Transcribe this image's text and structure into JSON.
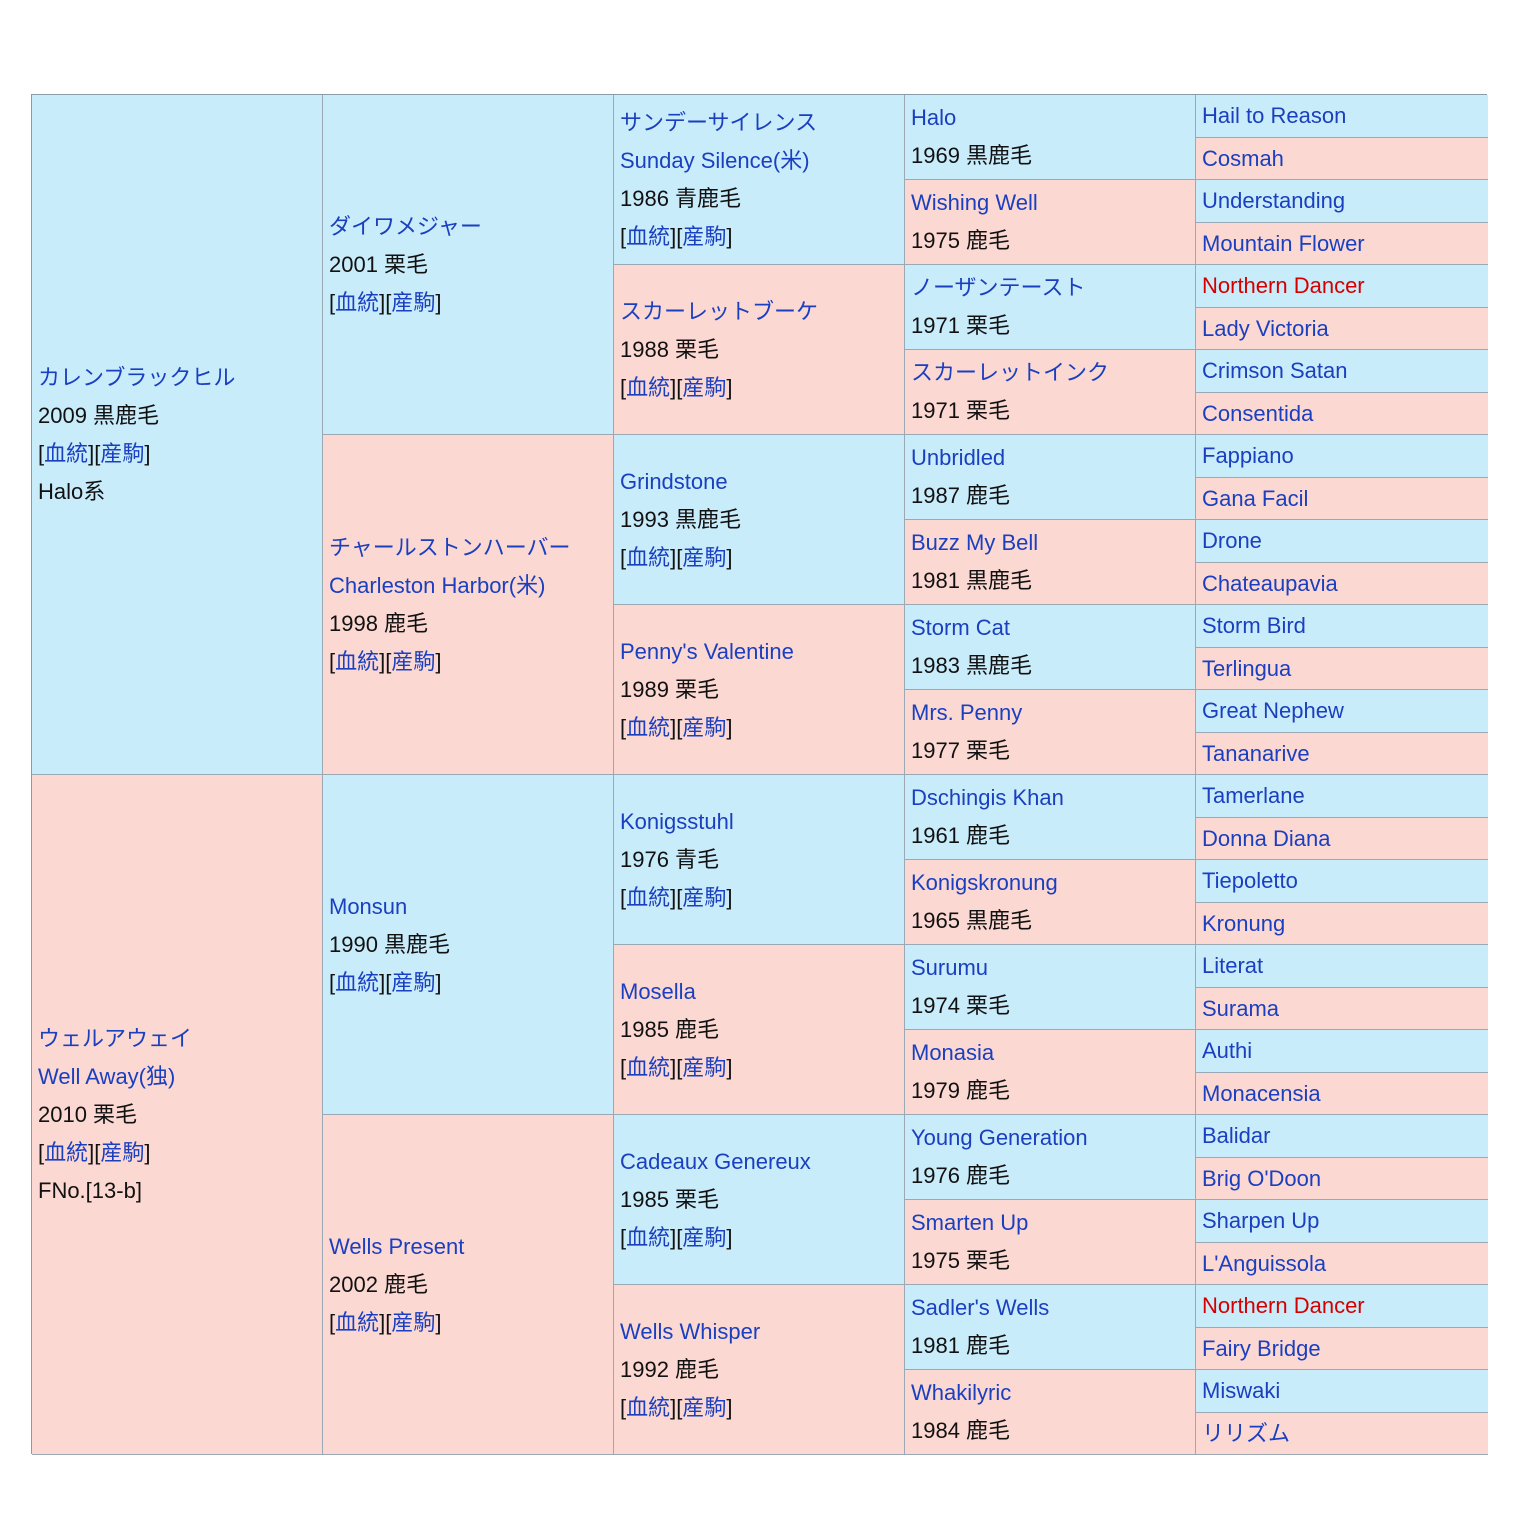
{
  "links": {
    "bloodline": "血統",
    "progeny": "産駒"
  },
  "cells": [
    {
      "gen": 1,
      "sex": "m",
      "names": [
        "カレンブラックヒル"
      ],
      "info": "2009 黒鹿毛",
      "links": true,
      "extra": "Halo系"
    },
    {
      "gen": 1,
      "sex": "f",
      "names": [
        "ウェルアウェイ",
        "Well Away(独)"
      ],
      "info": "2010 栗毛",
      "links": true,
      "extra": "FNo.[13-b]"
    },
    {
      "gen": 2,
      "sex": "m",
      "names": [
        "ダイワメジャー"
      ],
      "info": "2001 栗毛",
      "links": true
    },
    {
      "gen": 2,
      "sex": "f",
      "names": [
        "チャールストンハーバー",
        "Charleston Harbor(米)"
      ],
      "info": "1998 鹿毛",
      "links": true
    },
    {
      "gen": 2,
      "sex": "m",
      "names": [
        "Monsun"
      ],
      "info": "1990 黒鹿毛",
      "links": true
    },
    {
      "gen": 2,
      "sex": "f",
      "names": [
        "Wells Present"
      ],
      "info": "2002 鹿毛",
      "links": true
    },
    {
      "gen": 3,
      "sex": "m",
      "names": [
        "サンデーサイレンス",
        "Sunday Silence(米)"
      ],
      "info": "1986 青鹿毛",
      "links": true
    },
    {
      "gen": 3,
      "sex": "f",
      "names": [
        "スカーレットブーケ"
      ],
      "info": "1988 栗毛",
      "links": true
    },
    {
      "gen": 3,
      "sex": "m",
      "names": [
        "Grindstone"
      ],
      "info": "1993 黒鹿毛",
      "links": true
    },
    {
      "gen": 3,
      "sex": "f",
      "names": [
        "Penny's Valentine"
      ],
      "info": "1989 栗毛",
      "links": true
    },
    {
      "gen": 3,
      "sex": "m",
      "names": [
        "Konigsstuhl"
      ],
      "info": "1976 青毛",
      "links": true
    },
    {
      "gen": 3,
      "sex": "f",
      "names": [
        "Mosella"
      ],
      "info": "1985 鹿毛",
      "links": true
    },
    {
      "gen": 3,
      "sex": "m",
      "names": [
        "Cadeaux Genereux"
      ],
      "info": "1985 栗毛",
      "links": true
    },
    {
      "gen": 3,
      "sex": "f",
      "names": [
        "Wells Whisper"
      ],
      "info": "1992 鹿毛",
      "links": true
    },
    {
      "gen": 4,
      "sex": "m",
      "names": [
        "Halo"
      ],
      "info": "1969 黒鹿毛"
    },
    {
      "gen": 4,
      "sex": "f",
      "names": [
        "Wishing Well"
      ],
      "info": "1975 鹿毛"
    },
    {
      "gen": 4,
      "sex": "m",
      "names": [
        "ノーザンテースト"
      ],
      "info": "1971 栗毛"
    },
    {
      "gen": 4,
      "sex": "f",
      "names": [
        "スカーレットインク"
      ],
      "info": "1971 栗毛"
    },
    {
      "gen": 4,
      "sex": "m",
      "names": [
        "Unbridled"
      ],
      "info": "1987 鹿毛"
    },
    {
      "gen": 4,
      "sex": "f",
      "names": [
        "Buzz My Bell"
      ],
      "info": "1981 黒鹿毛"
    },
    {
      "gen": 4,
      "sex": "m",
      "names": [
        "Storm Cat"
      ],
      "info": "1983 黒鹿毛"
    },
    {
      "gen": 4,
      "sex": "f",
      "names": [
        "Mrs. Penny"
      ],
      "info": "1977 栗毛"
    },
    {
      "gen": 4,
      "sex": "m",
      "names": [
        "Dschingis Khan"
      ],
      "info": "1961 鹿毛"
    },
    {
      "gen": 4,
      "sex": "f",
      "names": [
        "Konigskronung"
      ],
      "info": "1965 黒鹿毛"
    },
    {
      "gen": 4,
      "sex": "m",
      "names": [
        "Surumu"
      ],
      "info": "1974 栗毛"
    },
    {
      "gen": 4,
      "sex": "f",
      "names": [
        "Monasia"
      ],
      "info": "1979 鹿毛"
    },
    {
      "gen": 4,
      "sex": "m",
      "names": [
        "Young Generation"
      ],
      "info": "1976 鹿毛"
    },
    {
      "gen": 4,
      "sex": "f",
      "names": [
        "Smarten Up"
      ],
      "info": "1975 栗毛"
    },
    {
      "gen": 4,
      "sex": "m",
      "names": [
        "Sadler's Wells"
      ],
      "info": "1981 鹿毛"
    },
    {
      "gen": 4,
      "sex": "f",
      "names": [
        "Whakilyric"
      ],
      "info": "1984 鹿毛"
    },
    {
      "gen": 5,
      "sex": "m",
      "names": [
        "Hail to Reason"
      ]
    },
    {
      "gen": 5,
      "sex": "f",
      "names": [
        "Cosmah"
      ]
    },
    {
      "gen": 5,
      "sex": "m",
      "names": [
        "Understanding"
      ]
    },
    {
      "gen": 5,
      "sex": "f",
      "names": [
        "Mountain Flower"
      ]
    },
    {
      "gen": 5,
      "sex": "m",
      "names": [
        "Northern Dancer"
      ],
      "highlight": true
    },
    {
      "gen": 5,
      "sex": "f",
      "names": [
        "Lady Victoria"
      ]
    },
    {
      "gen": 5,
      "sex": "m",
      "names": [
        "Crimson Satan"
      ]
    },
    {
      "gen": 5,
      "sex": "f",
      "names": [
        "Consentida"
      ]
    },
    {
      "gen": 5,
      "sex": "m",
      "names": [
        "Fappiano"
      ]
    },
    {
      "gen": 5,
      "sex": "f",
      "names": [
        "Gana Facil"
      ]
    },
    {
      "gen": 5,
      "sex": "m",
      "names": [
        "Drone"
      ]
    },
    {
      "gen": 5,
      "sex": "f",
      "names": [
        "Chateaupavia"
      ]
    },
    {
      "gen": 5,
      "sex": "m",
      "names": [
        "Storm Bird"
      ]
    },
    {
      "gen": 5,
      "sex": "f",
      "names": [
        "Terlingua"
      ]
    },
    {
      "gen": 5,
      "sex": "m",
      "names": [
        "Great Nephew"
      ]
    },
    {
      "gen": 5,
      "sex": "f",
      "names": [
        "Tananarive"
      ]
    },
    {
      "gen": 5,
      "sex": "m",
      "names": [
        "Tamerlane"
      ]
    },
    {
      "gen": 5,
      "sex": "f",
      "names": [
        "Donna Diana"
      ]
    },
    {
      "gen": 5,
      "sex": "m",
      "names": [
        "Tiepoletto"
      ]
    },
    {
      "gen": 5,
      "sex": "f",
      "names": [
        "Kronung"
      ]
    },
    {
      "gen": 5,
      "sex": "m",
      "names": [
        "Literat"
      ]
    },
    {
      "gen": 5,
      "sex": "f",
      "names": [
        "Surama"
      ]
    },
    {
      "gen": 5,
      "sex": "m",
      "names": [
        "Authi"
      ]
    },
    {
      "gen": 5,
      "sex": "f",
      "names": [
        "Monacensia"
      ]
    },
    {
      "gen": 5,
      "sex": "m",
      "names": [
        "Balidar"
      ]
    },
    {
      "gen": 5,
      "sex": "f",
      "names": [
        "Brig O'Doon"
      ]
    },
    {
      "gen": 5,
      "sex": "m",
      "names": [
        "Sharpen Up"
      ]
    },
    {
      "gen": 5,
      "sex": "f",
      "names": [
        "L'Anguissola"
      ]
    },
    {
      "gen": 5,
      "sex": "m",
      "names": [
        "Northern Dancer"
      ],
      "highlight": true
    },
    {
      "gen": 5,
      "sex": "f",
      "names": [
        "Fairy Bridge"
      ]
    },
    {
      "gen": 5,
      "sex": "m",
      "names": [
        "Miswaki"
      ]
    },
    {
      "gen": 5,
      "sex": "f",
      "names": [
        "リリズム"
      ]
    }
  ]
}
